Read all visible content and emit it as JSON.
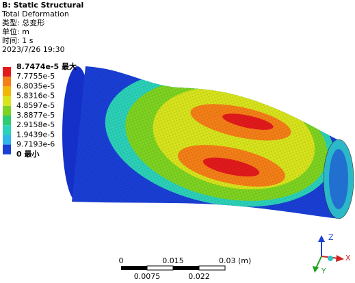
{
  "header": {
    "title": "B: Static Structural",
    "lines": [
      "Total Deformation",
      "类型: 总变形",
      "单位: m",
      "时间: 1 s",
      "2023/7/26 19:30"
    ]
  },
  "legend": {
    "labels": [
      "8.7474e-5 最大",
      "7.7755e-5",
      "6.8035e-5",
      "5.8316e-5",
      "4.8597e-5",
      "3.8877e-5",
      "2.9158e-5",
      "1.9439e-5",
      "9.7193e-6",
      "0 最小"
    ],
    "colors": [
      "#e31a1c",
      "#f57f17",
      "#f2b705",
      "#d8e41c",
      "#7ed321",
      "#2ecc71",
      "#2bd1b8",
      "#2fb6e8",
      "#1a3fd6"
    ]
  },
  "scale_bar": {
    "top_labels": [
      "0",
      "0.015",
      "0.03 (m)"
    ],
    "bottom_labels": [
      "0.0075",
      "0.022"
    ]
  },
  "triad": {
    "x": "X",
    "y": "Y",
    "z": "Z"
  }
}
